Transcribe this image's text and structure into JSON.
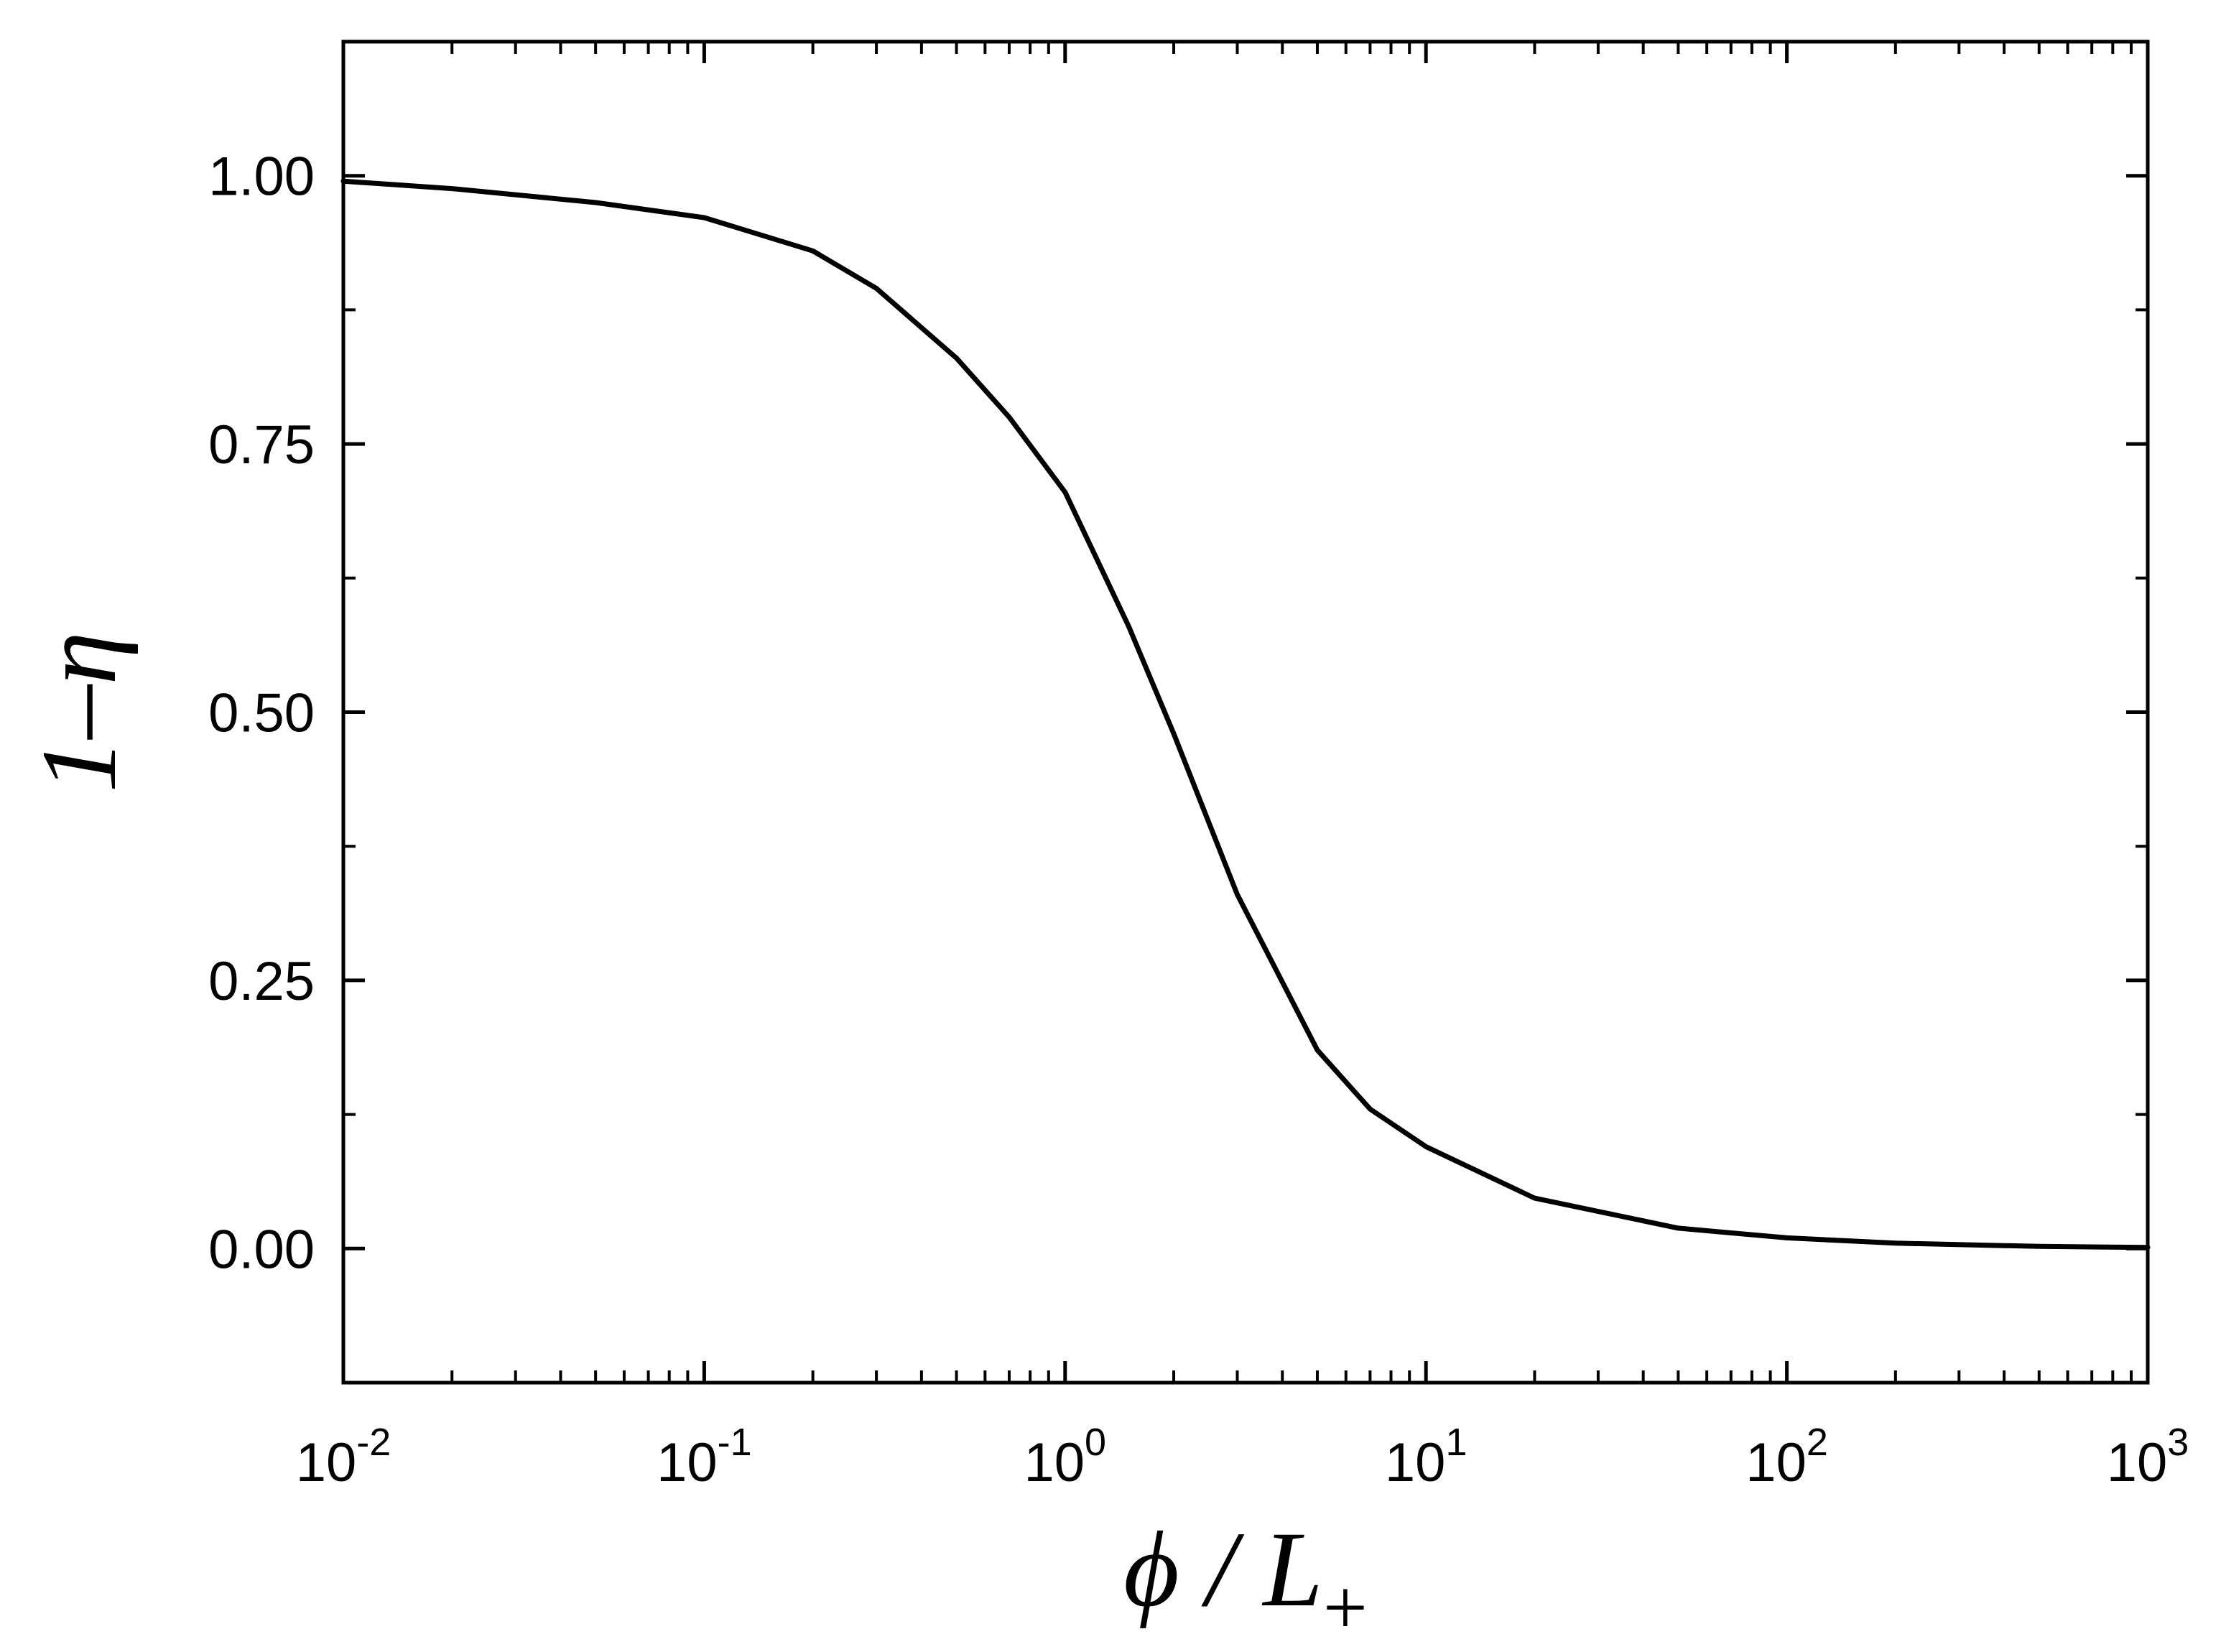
{
  "chart_data": {
    "type": "line",
    "title": "",
    "xlabel": {
      "main": "ϕ / L",
      "subscript": "+"
    },
    "ylabel": "1–η",
    "x_scale": "log",
    "xlim": [
      0.01,
      1000
    ],
    "ylim": [
      -0.125,
      1.125
    ],
    "x_ticks": [
      {
        "value": 0.01,
        "base": "10",
        "exp": "-2"
      },
      {
        "value": 0.1,
        "base": "10",
        "exp": "-1"
      },
      {
        "value": 1,
        "base": "10",
        "exp": "0"
      },
      {
        "value": 10,
        "base": "10",
        "exp": "1"
      },
      {
        "value": 100,
        "base": "10",
        "exp": "2"
      },
      {
        "value": 1000,
        "base": "10",
        "exp": "3"
      }
    ],
    "y_ticks": [
      {
        "value": 0.0,
        "label": "0.00"
      },
      {
        "value": 0.25,
        "label": "0.25"
      },
      {
        "value": 0.5,
        "label": "0.50"
      },
      {
        "value": 0.75,
        "label": "0.75"
      },
      {
        "value": 1.0,
        "label": "1.00"
      }
    ],
    "y_minor_ticks": [
      0.125,
      0.375,
      0.625,
      0.875
    ],
    "grid": false,
    "legend": "none",
    "line_color": "#000000",
    "series": [
      {
        "x": [
          0.01,
          0.02,
          0.05,
          0.1,
          0.2,
          0.3,
          0.5,
          0.7,
          1.0,
          1.5,
          2.0,
          3.0,
          5.0,
          7.0,
          10,
          20,
          50,
          100,
          200,
          500,
          1000
        ],
        "y": [
          0.995,
          0.988,
          0.975,
          0.961,
          0.93,
          0.895,
          0.83,
          0.775,
          0.705,
          0.58,
          0.48,
          0.33,
          0.185,
          0.13,
          0.095,
          0.047,
          0.019,
          0.01,
          0.005,
          0.002,
          0.001
        ]
      }
    ]
  }
}
